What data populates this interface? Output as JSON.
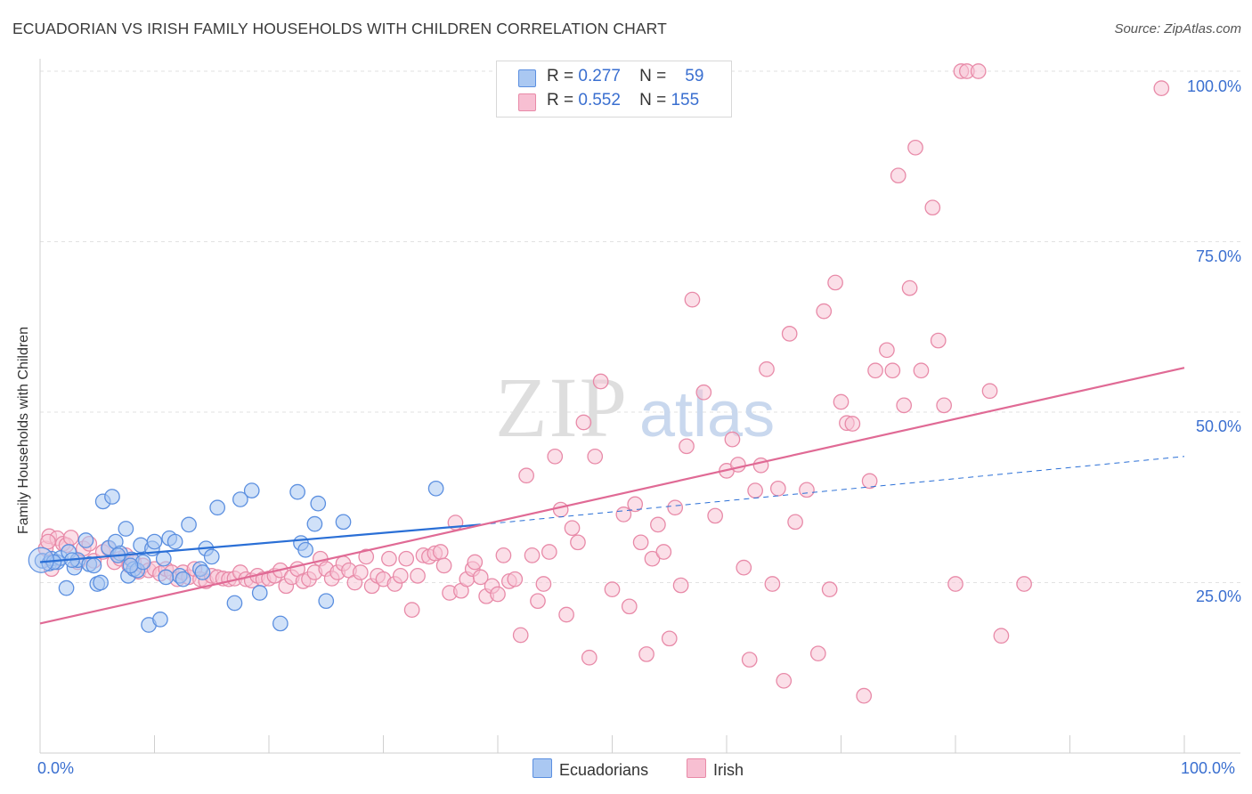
{
  "title": "ECUADORIAN VS IRISH FAMILY HOUSEHOLDS WITH CHILDREN CORRELATION CHART",
  "source": "Source: ZipAtlas.com",
  "watermark_main": "ZIP",
  "watermark_sub": "atlas",
  "legend_top": {
    "r_label": "R =",
    "n_label": "N =",
    "series": [
      {
        "name": "Ecuadorians",
        "r": "0.277",
        "n": "59",
        "fill": "#aac8f2",
        "stroke": "#5b8fe0"
      },
      {
        "name": "Irish",
        "r": "0.552",
        "n": "155",
        "fill": "#f7bfd2",
        "stroke": "#e88aa8"
      }
    ]
  },
  "colors": {
    "blue_point_stroke": "#5b8fe0",
    "blue_point_fill": "#aac8f2",
    "pink_point_stroke": "#e88aa8",
    "pink_point_fill": "#f7c4d5",
    "blue_line": "#2a6fd6",
    "pink_line": "#e06a95",
    "axis_label_color": "#3a6fd0",
    "grid": "#e2e2e2"
  },
  "chart_data": {
    "type": "scatter",
    "title": "ECUADORIAN VS IRISH FAMILY HOUSEHOLDS WITH CHILDREN CORRELATION CHART",
    "xlabel": "",
    "ylabel": "Family Households with Children",
    "xlim": [
      0,
      100
    ],
    "ylim": [
      0,
      102
    ],
    "x_tick_labels": [
      "0.0%",
      "100.0%"
    ],
    "y_ticks": [
      25,
      50,
      75,
      100
    ],
    "y_tick_labels": [
      "25.0%",
      "50.0%",
      "75.0%",
      "100.0%"
    ],
    "legend_position": "bottom-center",
    "series": [
      {
        "name": "Ecuadorians",
        "points": [
          [
            0.2,
            28.2
          ],
          [
            0.8,
            27.8
          ],
          [
            1.0,
            28.5
          ],
          [
            1.5,
            28.0
          ],
          [
            1.8,
            28.6
          ],
          [
            2.3,
            24.2
          ],
          [
            2.5,
            29.5
          ],
          [
            3.0,
            27.2
          ],
          [
            3.3,
            28.3
          ],
          [
            4.0,
            31.2
          ],
          [
            4.3,
            27.7
          ],
          [
            4.7,
            27.5
          ],
          [
            5.0,
            24.8
          ],
          [
            5.3,
            25.0
          ],
          [
            5.5,
            36.9
          ],
          [
            6.0,
            30.1
          ],
          [
            6.3,
            37.6
          ],
          [
            6.6,
            31.0
          ],
          [
            7.0,
            29.3
          ],
          [
            7.5,
            32.9
          ],
          [
            7.7,
            26.0
          ],
          [
            8.0,
            28.4
          ],
          [
            8.2,
            27.0
          ],
          [
            8.5,
            26.8
          ],
          [
            8.8,
            30.5
          ],
          [
            9.0,
            28.0
          ],
          [
            9.5,
            18.8
          ],
          [
            9.8,
            30.0
          ],
          [
            10.0,
            31.0
          ],
          [
            10.5,
            19.6
          ],
          [
            10.8,
            28.5
          ],
          [
            11.3,
            31.5
          ],
          [
            11.8,
            31.0
          ],
          [
            12.2,
            26.0
          ],
          [
            12.5,
            25.5
          ],
          [
            13.0,
            33.5
          ],
          [
            14.0,
            27.0
          ],
          [
            14.2,
            26.5
          ],
          [
            14.5,
            30.0
          ],
          [
            15.0,
            28.8
          ],
          [
            15.5,
            36.0
          ],
          [
            17.0,
            22.0
          ],
          [
            17.5,
            37.2
          ],
          [
            18.5,
            38.5
          ],
          [
            19.2,
            23.5
          ],
          [
            21.0,
            19.0
          ],
          [
            22.5,
            38.3
          ],
          [
            22.8,
            30.8
          ],
          [
            23.2,
            29.8
          ],
          [
            24.0,
            33.6
          ],
          [
            24.3,
            36.6
          ],
          [
            25.0,
            22.3
          ],
          [
            26.5,
            33.9
          ],
          [
            34.6,
            38.8
          ],
          [
            1.2,
            28.0
          ],
          [
            2.8,
            28.3
          ],
          [
            6.8,
            29.0
          ],
          [
            7.9,
            27.5
          ],
          [
            11.0,
            25.8
          ]
        ],
        "trend": {
          "x0": 0,
          "y0": 28.0,
          "x1": 38.5,
          "y1": 33.5,
          "dash_x1": 100,
          "dash_y1": 43.5
        }
      },
      {
        "name": "Irish",
        "points": [
          [
            0.5,
            30.0
          ],
          [
            0.8,
            31.8
          ],
          [
            1.0,
            27.0
          ],
          [
            1.5,
            31.5
          ],
          [
            2.0,
            30.7
          ],
          [
            2.3,
            30.5
          ],
          [
            2.7,
            31.6
          ],
          [
            3.3,
            28.0
          ],
          [
            3.8,
            30.0
          ],
          [
            4.3,
            30.7
          ],
          [
            4.7,
            28.2
          ],
          [
            5.5,
            29.5
          ],
          [
            6.0,
            30.0
          ],
          [
            6.5,
            28.0
          ],
          [
            7.0,
            28.5
          ],
          [
            7.5,
            29.0
          ],
          [
            7.8,
            27.5
          ],
          [
            8.2,
            28.0
          ],
          [
            8.6,
            26.6
          ],
          [
            9.0,
            27.5
          ],
          [
            9.5,
            26.8
          ],
          [
            10.0,
            27.0
          ],
          [
            10.5,
            26.3
          ],
          [
            11.0,
            27.0
          ],
          [
            11.5,
            26.5
          ],
          [
            12.0,
            25.5
          ],
          [
            12.5,
            26.5
          ],
          [
            13.0,
            25.8
          ],
          [
            13.5,
            27.0
          ],
          [
            14.0,
            25.5
          ],
          [
            14.5,
            25.2
          ],
          [
            15.0,
            26.0
          ],
          [
            15.5,
            25.8
          ],
          [
            16.0,
            25.6
          ],
          [
            16.5,
            25.5
          ],
          [
            17.0,
            25.6
          ],
          [
            17.5,
            26.5
          ],
          [
            18.0,
            25.5
          ],
          [
            18.5,
            25.3
          ],
          [
            19.0,
            26.0
          ],
          [
            19.5,
            25.5
          ],
          [
            20.0,
            25.6
          ],
          [
            20.5,
            26.0
          ],
          [
            21.0,
            26.8
          ],
          [
            21.5,
            24.5
          ],
          [
            22.0,
            25.8
          ],
          [
            22.5,
            27.0
          ],
          [
            23.0,
            25.2
          ],
          [
            23.5,
            25.5
          ],
          [
            24.0,
            26.5
          ],
          [
            24.5,
            28.5
          ],
          [
            25.0,
            27.0
          ],
          [
            25.5,
            25.6
          ],
          [
            26.0,
            26.5
          ],
          [
            26.5,
            27.8
          ],
          [
            27.0,
            26.8
          ],
          [
            27.5,
            25.0
          ],
          [
            28.0,
            26.5
          ],
          [
            28.5,
            28.8
          ],
          [
            29.0,
            24.5
          ],
          [
            29.5,
            26.0
          ],
          [
            30.0,
            25.5
          ],
          [
            30.5,
            28.5
          ],
          [
            31.0,
            24.8
          ],
          [
            31.5,
            26.0
          ],
          [
            32.0,
            28.5
          ],
          [
            32.5,
            21.0
          ],
          [
            33.0,
            26.0
          ],
          [
            33.5,
            29.0
          ],
          [
            34.0,
            28.8
          ],
          [
            34.5,
            29.3
          ],
          [
            35.0,
            29.5
          ],
          [
            35.3,
            27.5
          ],
          [
            35.8,
            23.5
          ],
          [
            36.3,
            33.8
          ],
          [
            36.8,
            23.8
          ],
          [
            37.3,
            25.5
          ],
          [
            37.8,
            27.0
          ],
          [
            38.0,
            28.0
          ],
          [
            38.5,
            25.8
          ],
          [
            39.0,
            23.0
          ],
          [
            39.5,
            24.5
          ],
          [
            40.0,
            23.3
          ],
          [
            40.5,
            29.0
          ],
          [
            41.0,
            25.2
          ],
          [
            41.5,
            25.5
          ],
          [
            42.0,
            17.3
          ],
          [
            42.5,
            40.7
          ],
          [
            43.0,
            29.0
          ],
          [
            43.5,
            22.3
          ],
          [
            44.0,
            24.8
          ],
          [
            44.5,
            29.5
          ],
          [
            45.0,
            43.5
          ],
          [
            45.5,
            35.7
          ],
          [
            46.0,
            20.3
          ],
          [
            46.5,
            33.0
          ],
          [
            47.0,
            30.9
          ],
          [
            47.5,
            48.5
          ],
          [
            48.0,
            14.0
          ],
          [
            48.5,
            43.5
          ],
          [
            49.0,
            54.5
          ],
          [
            50.0,
            24.0
          ],
          [
            51.0,
            35.0
          ],
          [
            51.5,
            21.5
          ],
          [
            52.0,
            36.5
          ],
          [
            52.5,
            30.9
          ],
          [
            53.0,
            14.5
          ],
          [
            53.5,
            28.5
          ],
          [
            54.0,
            33.5
          ],
          [
            54.5,
            29.5
          ],
          [
            55.0,
            16.8
          ],
          [
            55.5,
            36.0
          ],
          [
            56.0,
            24.6
          ],
          [
            56.5,
            45.0
          ],
          [
            57.0,
            66.5
          ],
          [
            58.0,
            52.9
          ],
          [
            59.0,
            34.8
          ],
          [
            60.0,
            41.4
          ],
          [
            60.5,
            46.0
          ],
          [
            61.0,
            42.3
          ],
          [
            61.5,
            27.2
          ],
          [
            62.0,
            13.7
          ],
          [
            62.5,
            38.5
          ],
          [
            63.0,
            42.2
          ],
          [
            63.5,
            56.3
          ],
          [
            64.0,
            24.8
          ],
          [
            64.5,
            38.8
          ],
          [
            65.0,
            10.6
          ],
          [
            65.5,
            61.5
          ],
          [
            66.0,
            33.9
          ],
          [
            67.0,
            38.6
          ],
          [
            68.0,
            14.6
          ],
          [
            68.5,
            64.8
          ],
          [
            69.0,
            24.0
          ],
          [
            69.5,
            69.0
          ],
          [
            70.0,
            51.5
          ],
          [
            70.5,
            48.4
          ],
          [
            71.0,
            48.3
          ],
          [
            72.0,
            8.4
          ],
          [
            72.5,
            39.9
          ],
          [
            73.0,
            56.1
          ],
          [
            74.0,
            59.1
          ],
          [
            74.5,
            56.1
          ],
          [
            75.0,
            84.7
          ],
          [
            75.5,
            51.0
          ],
          [
            76.0,
            68.2
          ],
          [
            76.5,
            88.8
          ],
          [
            77.0,
            56.1
          ],
          [
            78.0,
            80.0
          ],
          [
            78.5,
            60.5
          ],
          [
            79.0,
            51.0
          ],
          [
            80.0,
            24.8
          ],
          [
            80.5,
            100.0
          ],
          [
            81.0,
            100.0
          ],
          [
            82.0,
            100.0
          ],
          [
            83.0,
            53.1
          ],
          [
            84.0,
            17.2
          ],
          [
            86.0,
            24.8
          ],
          [
            98.0,
            97.5
          ],
          [
            0.7,
            31.0
          ]
        ],
        "trend": {
          "x0": 0,
          "y0": 19.0,
          "x1": 100,
          "y1": 56.5
        }
      }
    ]
  }
}
